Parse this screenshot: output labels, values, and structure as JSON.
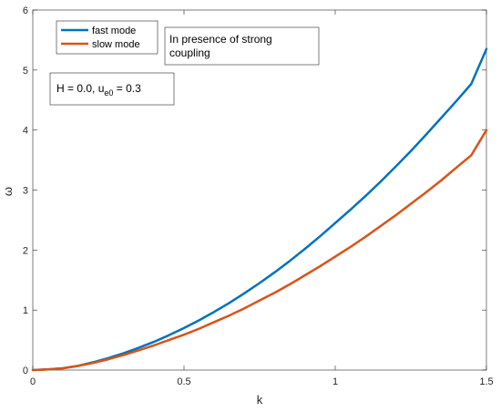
{
  "chart_data": {
    "type": "line",
    "title": "",
    "xlabel": "k",
    "ylabel": "ω",
    "xlim": [
      0,
      1.5
    ],
    "ylim": [
      0,
      6
    ],
    "xticks": [
      0,
      0.5,
      1,
      1.5
    ],
    "xtick_labels": [
      "0",
      "0.5",
      "1",
      "1.5"
    ],
    "yticks": [
      0,
      1,
      2,
      3,
      4,
      5,
      6
    ],
    "ytick_labels": [
      "0",
      "1",
      "2",
      "3",
      "4",
      "5",
      "6"
    ],
    "grid": false,
    "legend_position": "top-left",
    "series": [
      {
        "name": "fast mode",
        "color": "#0072BD",
        "x": [
          0,
          0.05,
          0.1,
          0.15,
          0.2,
          0.25,
          0.3,
          0.35,
          0.4,
          0.45,
          0.5,
          0.55,
          0.6,
          0.65,
          0.7,
          0.75,
          0.8,
          0.85,
          0.9,
          0.95,
          1.0,
          1.05,
          1.1,
          1.15,
          1.2,
          1.25,
          1.3,
          1.35,
          1.4,
          1.45,
          1.5
        ],
        "y": [
          0,
          0.01,
          0.03,
          0.07,
          0.13,
          0.2,
          0.28,
          0.37,
          0.47,
          0.58,
          0.7,
          0.83,
          0.97,
          1.12,
          1.28,
          1.45,
          1.63,
          1.82,
          2.02,
          2.23,
          2.45,
          2.67,
          2.9,
          3.14,
          3.39,
          3.65,
          3.92,
          4.2,
          4.48,
          4.77,
          5.35
        ]
      },
      {
        "name": "slow mode",
        "color": "#D95319",
        "x": [
          0,
          0.05,
          0.1,
          0.15,
          0.2,
          0.25,
          0.3,
          0.35,
          0.4,
          0.45,
          0.5,
          0.55,
          0.6,
          0.65,
          0.7,
          0.75,
          0.8,
          0.85,
          0.9,
          0.95,
          1.0,
          1.05,
          1.1,
          1.15,
          1.2,
          1.25,
          1.3,
          1.35,
          1.4,
          1.45,
          1.5
        ],
        "y": [
          0,
          0.01,
          0.03,
          0.07,
          0.12,
          0.18,
          0.25,
          0.33,
          0.41,
          0.5,
          0.59,
          0.69,
          0.8,
          0.91,
          1.03,
          1.16,
          1.29,
          1.43,
          1.58,
          1.73,
          1.89,
          2.05,
          2.22,
          2.4,
          2.58,
          2.77,
          2.96,
          3.16,
          3.37,
          3.58,
          4.0
        ]
      }
    ],
    "annotations": [
      {
        "text": "In presence of strong coupling"
      }
    ],
    "parameter_box": {
      "prefix": "H = 0.0, u",
      "subscript": "e0",
      "suffix": " = 0.3"
    }
  }
}
